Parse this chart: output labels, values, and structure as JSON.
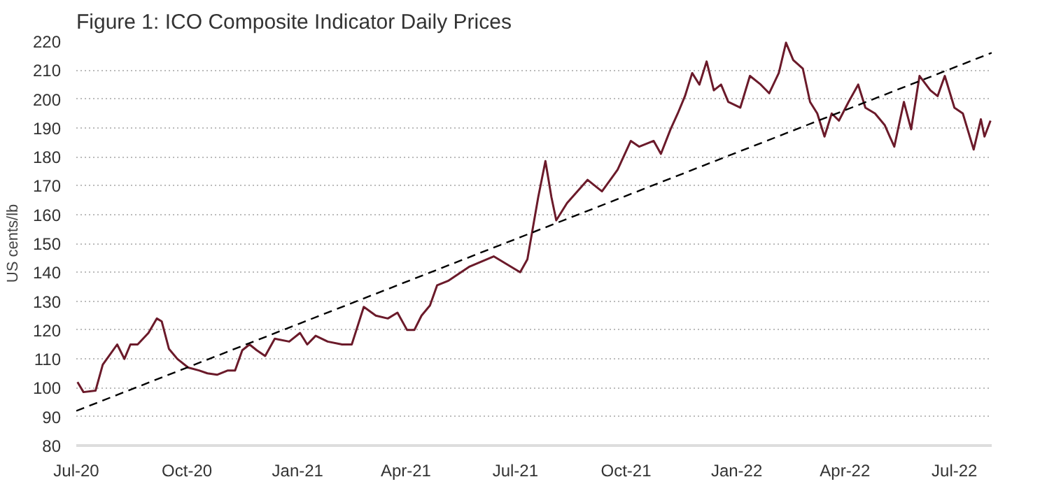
{
  "chart_data": {
    "type": "line",
    "title": "Figure 1: ICO Composite Indicator Daily Prices",
    "ylabel": "US cents/lb",
    "xlim": [
      "2020-07-01",
      "2022-08-01"
    ],
    "xticks": [
      {
        "value": "2020-07-01",
        "label": "Jul-20"
      },
      {
        "value": "2020-10-01",
        "label": "Oct-20"
      },
      {
        "value": "2021-01-01",
        "label": "Jan-21"
      },
      {
        "value": "2021-04-01",
        "label": "Apr-21"
      },
      {
        "value": "2021-07-01",
        "label": "Jul-21"
      },
      {
        "value": "2021-10-01",
        "label": "Oct-21"
      },
      {
        "value": "2022-01-01",
        "label": "Jan-22"
      },
      {
        "value": "2022-04-01",
        "label": "Apr-22"
      },
      {
        "value": "2022-07-01",
        "label": "Jul-22"
      }
    ],
    "ylim": [
      80,
      220
    ],
    "yticks": [
      80,
      90,
      100,
      110,
      120,
      130,
      140,
      150,
      160,
      170,
      180,
      190,
      200,
      210,
      220
    ],
    "grid": "y",
    "series": [
      {
        "color": "#6b1a2a",
        "line_style": "solid",
        "x": [
          "2020-07-02",
          "2020-07-07",
          "2020-07-17",
          "2020-07-23",
          "2020-08-04",
          "2020-08-10",
          "2020-08-15",
          "2020-08-21",
          "2020-08-30",
          "2020-09-06",
          "2020-09-10",
          "2020-09-16",
          "2020-09-23",
          "2020-10-02",
          "2020-10-11",
          "2020-10-18",
          "2020-10-26",
          "2020-11-04",
          "2020-11-10",
          "2020-11-16",
          "2020-11-22",
          "2020-11-28",
          "2020-12-05",
          "2020-12-13",
          "2020-12-25",
          "2021-01-03",
          "2021-01-09",
          "2021-01-16",
          "2021-01-26",
          "2021-02-07",
          "2021-02-15",
          "2021-02-25",
          "2021-03-07",
          "2021-03-17",
          "2021-03-25",
          "2021-04-02",
          "2021-04-08",
          "2021-04-14",
          "2021-04-21",
          "2021-04-27",
          "2021-05-06",
          "2021-05-24",
          "2021-06-13",
          "2021-07-05",
          "2021-07-11",
          "2021-07-20",
          "2021-07-26",
          "2021-07-31",
          "2021-08-04",
          "2021-08-13",
          "2021-08-30",
          "2021-09-11",
          "2021-09-24",
          "2021-10-05",
          "2021-10-12",
          "2021-10-24",
          "2021-10-30",
          "2021-11-07",
          "2021-11-13",
          "2021-11-19",
          "2021-11-25",
          "2021-12-01",
          "2021-12-07",
          "2021-12-13",
          "2021-12-19",
          "2021-12-25",
          "2022-01-04",
          "2022-01-12",
          "2022-01-21",
          "2022-01-28",
          "2022-02-05",
          "2022-02-11",
          "2022-02-17",
          "2022-02-25",
          "2022-03-03",
          "2022-03-09",
          "2022-03-15",
          "2022-03-21",
          "2022-03-27",
          "2022-04-04",
          "2022-04-12",
          "2022-04-18",
          "2022-04-26",
          "2022-05-04",
          "2022-05-12",
          "2022-05-20",
          "2022-05-26",
          "2022-06-02",
          "2022-06-11",
          "2022-06-17",
          "2022-06-23",
          "2022-07-01",
          "2022-07-08",
          "2022-07-17",
          "2022-07-23",
          "2022-07-26",
          "2022-07-31"
        ],
        "values": [
          102,
          98.5,
          99,
          108,
          115,
          110,
          115,
          115,
          119,
          124,
          123,
          113.5,
          110,
          107,
          106,
          105,
          104.5,
          106,
          106,
          113,
          115,
          113,
          111,
          117,
          116,
          119,
          115,
          118,
          116,
          115,
          115,
          128,
          125,
          124,
          126,
          120,
          120,
          125,
          128.5,
          135.5,
          137,
          142,
          145.5,
          140,
          144.5,
          166,
          178.5,
          166,
          158,
          164,
          172,
          168,
          175.5,
          185.5,
          183.5,
          185.5,
          181,
          189.5,
          195,
          201,
          209,
          205,
          213,
          203,
          205,
          199,
          197,
          208,
          205,
          202,
          209,
          219.5,
          213.5,
          210.5,
          199,
          195,
          187,
          195,
          192.5,
          199,
          205,
          197,
          195,
          191,
          183.5,
          199,
          189.5,
          208,
          203,
          201,
          208,
          197,
          195,
          182.5,
          193,
          187,
          192.5
        ]
      },
      {
        "type": "line",
        "color": "#000000",
        "line_style": "dashed",
        "x": [
          "2020-07-01",
          "2022-08-01"
        ],
        "values": [
          92,
          216
        ]
      }
    ]
  }
}
